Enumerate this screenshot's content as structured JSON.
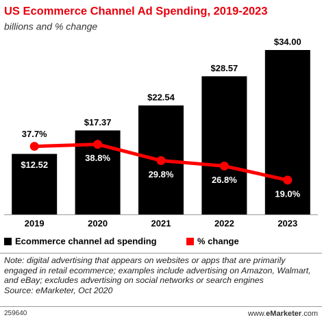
{
  "chart_data": {
    "type": "bar_line",
    "title": "US Ecommerce Channel Ad Spending, 2019-2023",
    "subtitle": "billions and % change",
    "categories": [
      "2019",
      "2020",
      "2021",
      "2022",
      "2023"
    ],
    "series": [
      {
        "name": "Ecommerce channel ad spending",
        "type": "bar",
        "color": "#000000",
        "values": [
          12.52,
          17.37,
          22.54,
          28.57,
          34.0
        ],
        "value_labels": [
          "$12.52",
          "$17.37",
          "$22.54",
          "$28.57",
          "$34.00"
        ]
      },
      {
        "name": "% change",
        "type": "line",
        "axis": "y2",
        "color": "#ff0000",
        "values": [
          37.7,
          38.8,
          29.8,
          26.8,
          19.0
        ],
        "value_labels": [
          "37.7%",
          "38.8%",
          "29.8%",
          "26.8%",
          "19.0%"
        ]
      }
    ],
    "ylim": [
      0,
      34
    ],
    "y2lim": [
      0,
      91
    ],
    "legend": "bottom-left",
    "note": "Note: digital advertising that appears on websites or apps that are primarily engaged in retail ecommerce; examples include advertising on Amazon, Walmart, and eBay; excludes advertising on social networks or search engines",
    "source": "Source: eMarketer, Oct 2020",
    "chart_id": "259640",
    "site_prefix": "www.",
    "site_brand": "eMarketer",
    "site_suffix": ".com"
  }
}
